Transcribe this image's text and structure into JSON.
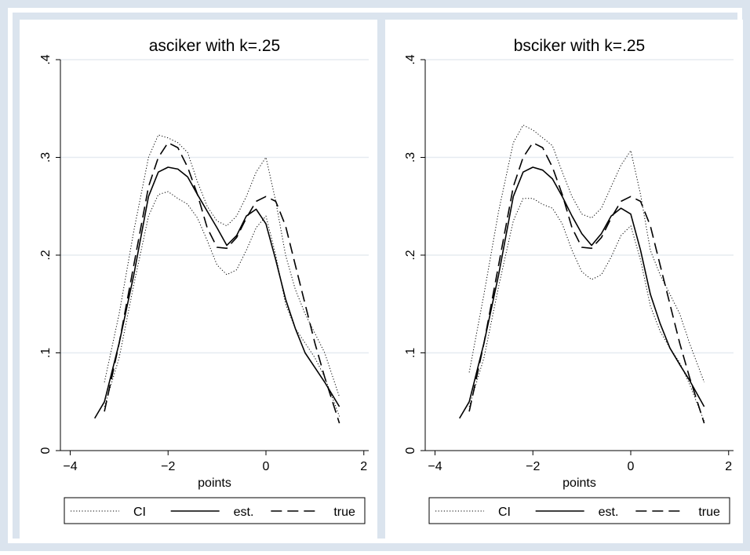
{
  "colors": {
    "frame": "#dbe4ee",
    "panel": "#ffffff",
    "grid": "#e6ebf1",
    "line": "#000000"
  },
  "legend": {
    "items": [
      {
        "label": "CI",
        "style": "dotted"
      },
      {
        "label": "est.",
        "style": "solid"
      },
      {
        "label": "true",
        "style": "dashed"
      }
    ]
  },
  "chart_data": [
    {
      "type": "line",
      "title": "asciker with k=.25",
      "xlabel": "points",
      "ylabel": "",
      "xlim": [
        -4.2,
        2.1
      ],
      "ylim": [
        0,
        0.4
      ],
      "xticks": [
        -4,
        -2,
        0,
        2
      ],
      "xtick_labels": [
        "−4",
        "−2",
        "0",
        "2"
      ],
      "yticks": [
        0,
        0.1,
        0.2,
        0.3,
        0.4
      ],
      "ytick_labels": [
        "0",
        ".1",
        ".2",
        ".3",
        ".4"
      ],
      "grid": true,
      "legend_position": "bottom",
      "series": [
        {
          "name": "CI",
          "style": "dotted",
          "x": [
            -3.3,
            -3.0,
            -2.7,
            -2.4,
            -2.2,
            -2.0,
            -1.8,
            -1.6,
            -1.4,
            -1.2,
            -1.0,
            -0.8,
            -0.6,
            -0.4,
            -0.2,
            0.0,
            0.2,
            0.4,
            0.6,
            0.8,
            1.0,
            1.2,
            1.5
          ],
          "y": [
            0.07,
            0.14,
            0.225,
            0.3,
            0.323,
            0.32,
            0.315,
            0.305,
            0.275,
            0.25,
            0.235,
            0.23,
            0.24,
            0.26,
            0.285,
            0.3,
            0.255,
            0.2,
            0.165,
            0.14,
            0.12,
            0.1,
            0.055
          ]
        },
        {
          "name": "CI",
          "style": "dotted",
          "x": [
            -3.3,
            -3.0,
            -2.7,
            -2.4,
            -2.2,
            -2.0,
            -1.8,
            -1.6,
            -1.4,
            -1.2,
            -1.0,
            -0.8,
            -0.6,
            -0.4,
            -0.2,
            0.0,
            0.2,
            0.4,
            0.6,
            0.8,
            1.0,
            1.2,
            1.5
          ],
          "y": [
            0.045,
            0.095,
            0.17,
            0.24,
            0.262,
            0.265,
            0.258,
            0.252,
            0.238,
            0.215,
            0.19,
            0.18,
            0.185,
            0.205,
            0.228,
            0.24,
            0.2,
            0.15,
            0.125,
            0.11,
            0.095,
            0.075,
            0.035
          ]
        },
        {
          "name": "est.",
          "style": "solid",
          "x": [
            -3.5,
            -3.3,
            -3.0,
            -2.7,
            -2.4,
            -2.2,
            -2.0,
            -1.8,
            -1.6,
            -1.4,
            -1.2,
            -1.0,
            -0.8,
            -0.6,
            -0.4,
            -0.2,
            0.0,
            0.2,
            0.4,
            0.6,
            0.8,
            1.0,
            1.2,
            1.5
          ],
          "y": [
            0.033,
            0.05,
            0.11,
            0.18,
            0.26,
            0.285,
            0.29,
            0.288,
            0.28,
            0.262,
            0.245,
            0.228,
            0.21,
            0.22,
            0.24,
            0.247,
            0.232,
            0.195,
            0.155,
            0.125,
            0.1,
            0.085,
            0.07,
            0.045
          ]
        },
        {
          "name": "true",
          "style": "dashed",
          "x": [
            -3.3,
            -3.0,
            -2.7,
            -2.4,
            -2.2,
            -2.0,
            -1.8,
            -1.6,
            -1.4,
            -1.2,
            -1.0,
            -0.8,
            -0.6,
            -0.4,
            -0.2,
            0.0,
            0.2,
            0.4,
            0.6,
            0.8,
            1.0,
            1.2,
            1.5
          ],
          "y": [
            0.04,
            0.11,
            0.19,
            0.27,
            0.3,
            0.315,
            0.31,
            0.29,
            0.262,
            0.228,
            0.208,
            0.207,
            0.218,
            0.238,
            0.255,
            0.26,
            0.255,
            0.23,
            0.19,
            0.15,
            0.11,
            0.075,
            0.028
          ]
        }
      ]
    },
    {
      "type": "line",
      "title": "bsciker with k=.25",
      "xlabel": "points",
      "ylabel": "",
      "xlim": [
        -4.2,
        2.1
      ],
      "ylim": [
        0,
        0.4
      ],
      "xticks": [
        -4,
        -2,
        0,
        2
      ],
      "xtick_labels": [
        "−4",
        "−2",
        "0",
        "2"
      ],
      "yticks": [
        0,
        0.1,
        0.2,
        0.3,
        0.4
      ],
      "ytick_labels": [
        "0",
        ".1",
        ".2",
        ".3",
        ".4"
      ],
      "grid": true,
      "legend_position": "bottom",
      "series": [
        {
          "name": "CI",
          "style": "dotted",
          "x": [
            -3.3,
            -3.0,
            -2.7,
            -2.4,
            -2.2,
            -2.0,
            -1.8,
            -1.6,
            -1.4,
            -1.2,
            -1.0,
            -0.8,
            -0.6,
            -0.4,
            -0.2,
            0.0,
            0.2,
            0.4,
            0.6,
            0.8,
            1.0,
            1.2,
            1.5
          ],
          "y": [
            0.08,
            0.16,
            0.245,
            0.315,
            0.333,
            0.328,
            0.32,
            0.312,
            0.285,
            0.26,
            0.242,
            0.238,
            0.248,
            0.27,
            0.292,
            0.307,
            0.262,
            0.205,
            0.18,
            0.16,
            0.14,
            0.11,
            0.07
          ]
        },
        {
          "name": "CI",
          "style": "dotted",
          "x": [
            -3.3,
            -3.0,
            -2.7,
            -2.4,
            -2.2,
            -2.0,
            -1.8,
            -1.6,
            -1.4,
            -1.2,
            -1.0,
            -0.8,
            -0.6,
            -0.4,
            -0.2,
            0.0,
            0.2,
            0.4,
            0.6,
            0.8,
            1.0,
            1.2,
            1.5
          ],
          "y": [
            0.045,
            0.095,
            0.168,
            0.235,
            0.258,
            0.258,
            0.252,
            0.248,
            0.232,
            0.205,
            0.183,
            0.175,
            0.18,
            0.198,
            0.22,
            0.23,
            0.195,
            0.148,
            0.122,
            0.105,
            0.09,
            0.068,
            0.03
          ]
        },
        {
          "name": "est.",
          "style": "solid",
          "x": [
            -3.5,
            -3.3,
            -3.0,
            -2.7,
            -2.4,
            -2.2,
            -2.0,
            -1.8,
            -1.6,
            -1.4,
            -1.2,
            -1.0,
            -0.8,
            -0.6,
            -0.4,
            -0.2,
            0.0,
            0.2,
            0.4,
            0.6,
            0.8,
            1.0,
            1.2,
            1.5
          ],
          "y": [
            0.033,
            0.05,
            0.11,
            0.18,
            0.26,
            0.285,
            0.29,
            0.287,
            0.278,
            0.26,
            0.24,
            0.222,
            0.21,
            0.222,
            0.24,
            0.248,
            0.242,
            0.205,
            0.16,
            0.13,
            0.105,
            0.088,
            0.072,
            0.045
          ]
        },
        {
          "name": "true",
          "style": "dashed",
          "x": [
            -3.3,
            -3.0,
            -2.7,
            -2.4,
            -2.2,
            -2.0,
            -1.8,
            -1.6,
            -1.4,
            -1.2,
            -1.0,
            -0.8,
            -0.6,
            -0.4,
            -0.2,
            0.0,
            0.2,
            0.4,
            0.6,
            0.8,
            1.0,
            1.2,
            1.5
          ],
          "y": [
            0.04,
            0.11,
            0.19,
            0.27,
            0.3,
            0.315,
            0.31,
            0.29,
            0.262,
            0.228,
            0.208,
            0.207,
            0.218,
            0.238,
            0.255,
            0.26,
            0.255,
            0.23,
            0.19,
            0.15,
            0.11,
            0.075,
            0.028
          ]
        }
      ]
    }
  ]
}
